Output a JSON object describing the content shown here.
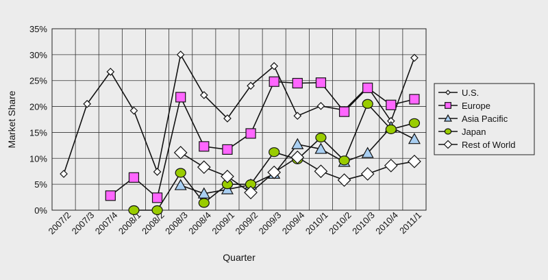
{
  "chart_data": {
    "type": "line",
    "title": "",
    "xlabel": "Quarter",
    "ylabel": "Market Share",
    "ylim": [
      0,
      35
    ],
    "yticks": [
      "0%",
      "5%",
      "10%",
      "15%",
      "20%",
      "25%",
      "30%",
      "35%"
    ],
    "grid": "horizontal and vertical",
    "legend_position": "right",
    "x_tick_labels": [
      "2007/2",
      "2007/3",
      "2007/4",
      "2008/1",
      "2008/2",
      "2008/3",
      "2008/4",
      "2009/1",
      "2009/2",
      "2009/3",
      "2009/4",
      "2010/1",
      "2010/2",
      "2010/3",
      "2010/4",
      "2011/1"
    ],
    "series": [
      {
        "name": "U.S.",
        "marker": "small-diamond",
        "color": "#ffffff",
        "points": [
          {
            "x": 0,
            "y": 7.0
          },
          {
            "x": 1,
            "y": 20.5
          },
          {
            "x": 2,
            "y": 26.7
          },
          {
            "x": 3,
            "y": 19.2
          },
          {
            "x": 4,
            "y": 7.4
          },
          {
            "x": 5,
            "y": 30.0
          },
          {
            "x": 6,
            "y": 22.2
          },
          {
            "x": 7,
            "y": 17.7
          },
          {
            "x": 8,
            "y": 24.0
          },
          {
            "x": 9,
            "y": 27.8
          },
          {
            "x": 10,
            "y": 18.2
          },
          {
            "x": 11,
            "y": 20.1
          },
          {
            "x": 12,
            "y": 19.3
          },
          {
            "x": 13,
            "y": 23.8
          },
          {
            "x": 14,
            "y": 17.2
          },
          {
            "x": 15,
            "y": 29.4
          }
        ]
      },
      {
        "name": "Europe",
        "marker": "square",
        "color": "#ff66ff",
        "points": [
          {
            "x": 2,
            "y": 2.8
          },
          {
            "x": 3,
            "y": 6.3
          },
          {
            "x": 4,
            "y": 2.4
          },
          {
            "x": 5,
            "y": 21.8
          },
          {
            "x": 6,
            "y": 12.3
          },
          {
            "x": 7,
            "y": 11.7
          },
          {
            "x": 8,
            "y": 14.8
          },
          {
            "x": 9,
            "y": 24.8
          },
          {
            "x": 10,
            "y": 24.5
          },
          {
            "x": 11,
            "y": 24.6
          },
          {
            "x": 12,
            "y": 19.0
          },
          {
            "x": 13,
            "y": 23.6
          },
          {
            "x": 14,
            "y": 20.3
          },
          {
            "x": 15,
            "y": 21.4
          }
        ]
      },
      {
        "name": "Asia Pacific",
        "marker": "triangle",
        "color": "#a9cff2",
        "points": [
          {
            "x": 5,
            "y": 4.8
          },
          {
            "x": 6,
            "y": 3.2
          },
          {
            "x": 7,
            "y": 4.0
          },
          {
            "x": 8,
            "y": 4.9
          },
          {
            "x": 9,
            "y": 7.0
          },
          {
            "x": 10,
            "y": 12.7
          },
          {
            "x": 11,
            "y": 11.8
          },
          {
            "x": 12,
            "y": 9.3
          },
          {
            "x": 13,
            "y": 11.0
          },
          {
            "x": 14,
            "y": 16.0
          },
          {
            "x": 15,
            "y": 13.7
          }
        ]
      },
      {
        "name": "Japan",
        "marker": "circle",
        "color": "#99cc00",
        "points": [
          {
            "x": 3,
            "y": 0.0
          },
          {
            "x": 4,
            "y": 0.0
          },
          {
            "x": 5,
            "y": 7.2
          },
          {
            "x": 6,
            "y": 1.4
          },
          {
            "x": 7,
            "y": 5.0
          },
          {
            "x": 8,
            "y": 5.0
          },
          {
            "x": 9,
            "y": 11.2
          },
          {
            "x": 10,
            "y": 9.8
          },
          {
            "x": 11,
            "y": 14.0
          },
          {
            "x": 12,
            "y": 9.6
          },
          {
            "x": 13,
            "y": 20.5
          },
          {
            "x": 14,
            "y": 15.6
          },
          {
            "x": 15,
            "y": 16.8
          }
        ]
      },
      {
        "name": "Rest of World",
        "marker": "diamond",
        "color": "#ffffff",
        "points": [
          {
            "x": 5,
            "y": 11.1
          },
          {
            "x": 6,
            "y": 8.3
          },
          {
            "x": 7,
            "y": 6.5
          },
          {
            "x": 8,
            "y": 3.4
          },
          {
            "x": 9,
            "y": 7.3
          },
          {
            "x": 10,
            "y": 10.2
          },
          {
            "x": 11,
            "y": 7.5
          },
          {
            "x": 12,
            "y": 5.8
          },
          {
            "x": 13,
            "y": 7.0
          },
          {
            "x": 14,
            "y": 8.6
          },
          {
            "x": 15,
            "y": 9.4
          }
        ]
      }
    ]
  }
}
